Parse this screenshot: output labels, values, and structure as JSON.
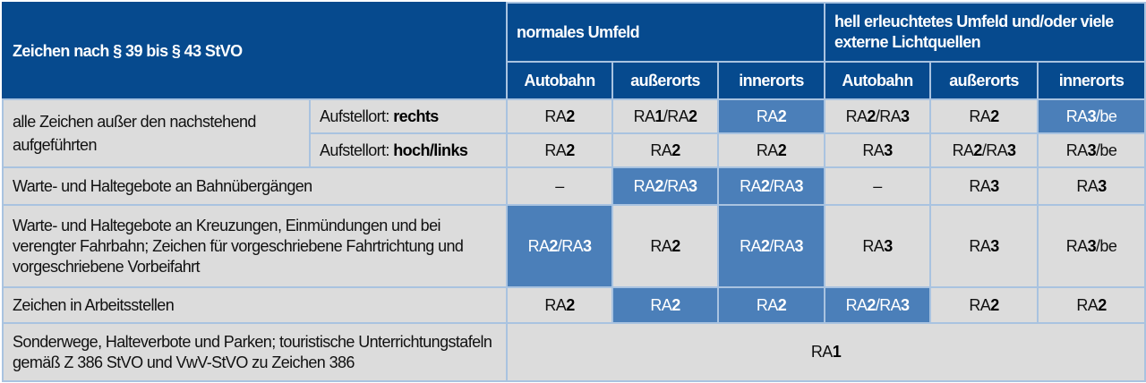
{
  "header": {
    "title": "Zeichen nach § 39 bis § 43 StVO",
    "groups": [
      "normales Umfeld",
      "hell erleuchtetes Umfeld und/oder viele externe Lichtquellen"
    ],
    "columns": [
      "Autobahn",
      "außerorts",
      "innerorts",
      "Autobahn",
      "außerorts",
      "innerorts"
    ]
  },
  "colors": {
    "header": "#064a8e",
    "cell": "#dcdcdc",
    "highlight": "#4b7fb9",
    "border": "#a9c3e0"
  },
  "rows": [
    {
      "label": "alle Zeichen außer den nachstehend aufgeführten",
      "sub": [
        {
          "prefix": "Aufstellort: ",
          "bold": "rechts",
          "values": [
            "RA2",
            "RA1/RA2",
            "RA2",
            "RA2/RA3",
            "RA2",
            "RA3/be"
          ],
          "highlight": [
            false,
            false,
            true,
            false,
            false,
            true
          ]
        },
        {
          "prefix": "Aufstellort: ",
          "bold": "hoch/links",
          "values": [
            "RA2",
            "RA2",
            "RA2",
            "RA3",
            "RA2/RA3",
            "RA3/be"
          ],
          "highlight": [
            false,
            false,
            false,
            false,
            false,
            false
          ]
        }
      ]
    },
    {
      "label": "Warte- und Haltegebote an Bahnübergängen",
      "values": [
        "–",
        "RA2/RA3",
        "RA2/RA3",
        "–",
        "RA3",
        "RA3"
      ],
      "highlight": [
        false,
        true,
        true,
        false,
        false,
        false
      ]
    },
    {
      "label": "Warte- und Haltegebote an Kreuzungen, Einmündungen und bei verengter Fahrbahn; Zeichen für vorgeschriebene Fahrtrichtung und vorgeschriebene Vorbeifahrt",
      "values": [
        "RA2/RA3",
        "RA2",
        "RA2/RA3",
        "RA3",
        "RA3",
        "RA3/be"
      ],
      "highlight": [
        true,
        false,
        true,
        false,
        false,
        false
      ]
    },
    {
      "label": "Zeichen in Arbeitsstellen",
      "values": [
        "RA2",
        "RA2",
        "RA2",
        "RA2/RA3",
        "RA2",
        "RA2"
      ],
      "highlight": [
        false,
        true,
        true,
        true,
        false,
        false
      ]
    },
    {
      "label": "Sonderwege, Halteverbote und Parken; touristische Unterrich­tungstafeln gemäß Z 386 StVO und VwV-StVO zu Zeichen 386",
      "merged_value": "RA1"
    }
  ]
}
